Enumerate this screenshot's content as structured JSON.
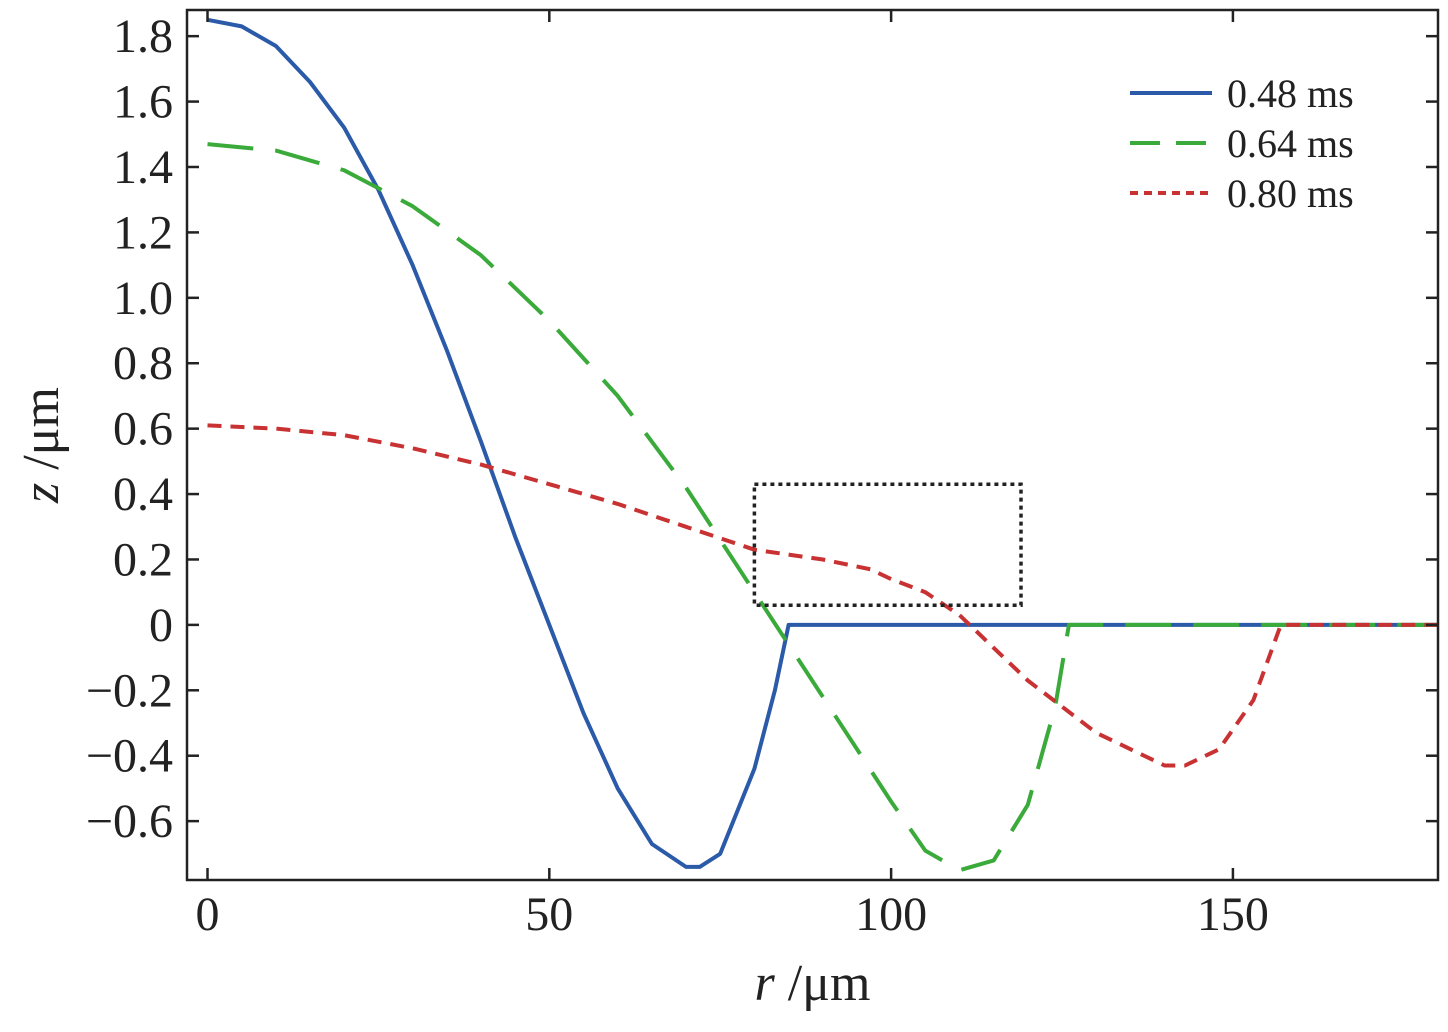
{
  "chart_data": {
    "type": "line",
    "title": "",
    "xlabel": "r /μm",
    "ylabel": "z /μm",
    "xlabel_var": "r",
    "xlabel_unit": " /μm",
    "ylabel_var": "z",
    "ylabel_unit": " /μm",
    "xlim": [
      -3,
      180
    ],
    "ylim": [
      -0.78,
      1.88
    ],
    "x_ticks": [
      0,
      50,
      100,
      150
    ],
    "x_tick_labels": [
      "0",
      "50",
      "100",
      "150"
    ],
    "y_ticks": [
      -0.6,
      -0.4,
      -0.2,
      0,
      0.2,
      0.4,
      0.6,
      0.8,
      1.0,
      1.2,
      1.4,
      1.6,
      1.8
    ],
    "y_tick_labels": [
      "−0.6",
      "−0.4",
      "−0.2",
      "0",
      "0.2",
      "0.4",
      "0.6",
      "0.8",
      "1.0",
      "1.2",
      "1.4",
      "1.6",
      "1.8"
    ],
    "grid": false,
    "legend_position": "top-right",
    "series": [
      {
        "name": "0.48 ms",
        "color": "#2a5aa8",
        "style": "solid",
        "x": [
          0,
          5,
          10,
          15,
          20,
          25,
          30,
          35,
          40,
          45,
          50,
          55,
          60,
          65,
          70,
          72,
          75,
          80,
          83,
          85,
          90,
          100,
          120,
          140,
          160,
          180
        ],
        "y": [
          1.85,
          1.83,
          1.77,
          1.66,
          1.52,
          1.33,
          1.1,
          0.84,
          0.56,
          0.27,
          0.0,
          -0.27,
          -0.5,
          -0.67,
          -0.74,
          -0.74,
          -0.7,
          -0.44,
          -0.2,
          0.0,
          0.0,
          0.0,
          0.0,
          0.0,
          0.0,
          0.0
        ]
      },
      {
        "name": "0.64 ms",
        "color": "#3aaa3a",
        "style": "dashed",
        "x": [
          0,
          10,
          20,
          30,
          40,
          50,
          60,
          70,
          80,
          90,
          100,
          105,
          110,
          115,
          120,
          124,
          126,
          130,
          150,
          180
        ],
        "y": [
          1.47,
          1.45,
          1.39,
          1.28,
          1.13,
          0.93,
          0.7,
          0.42,
          0.1,
          -0.22,
          -0.54,
          -0.69,
          -0.75,
          -0.72,
          -0.55,
          -0.25,
          0.0,
          0.0,
          0.0,
          0.0
        ]
      },
      {
        "name": "0.80 ms",
        "color": "#c83232",
        "style": "dotted",
        "x": [
          0,
          10,
          20,
          30,
          40,
          50,
          60,
          70,
          80,
          90,
          97,
          100,
          105,
          110,
          120,
          130,
          140,
          143,
          148,
          153,
          157,
          160,
          180
        ],
        "y": [
          0.61,
          0.6,
          0.58,
          0.54,
          0.49,
          0.43,
          0.37,
          0.3,
          0.23,
          0.2,
          0.17,
          0.14,
          0.1,
          0.03,
          -0.17,
          -0.33,
          -0.43,
          -0.43,
          -0.38,
          -0.23,
          0.0,
          0.0,
          0.0
        ]
      }
    ],
    "annotations": [
      {
        "type": "dotted-rectangle",
        "x": [
          80,
          119
        ],
        "y": [
          0.06,
          0.43
        ],
        "color": "#222222"
      }
    ]
  }
}
